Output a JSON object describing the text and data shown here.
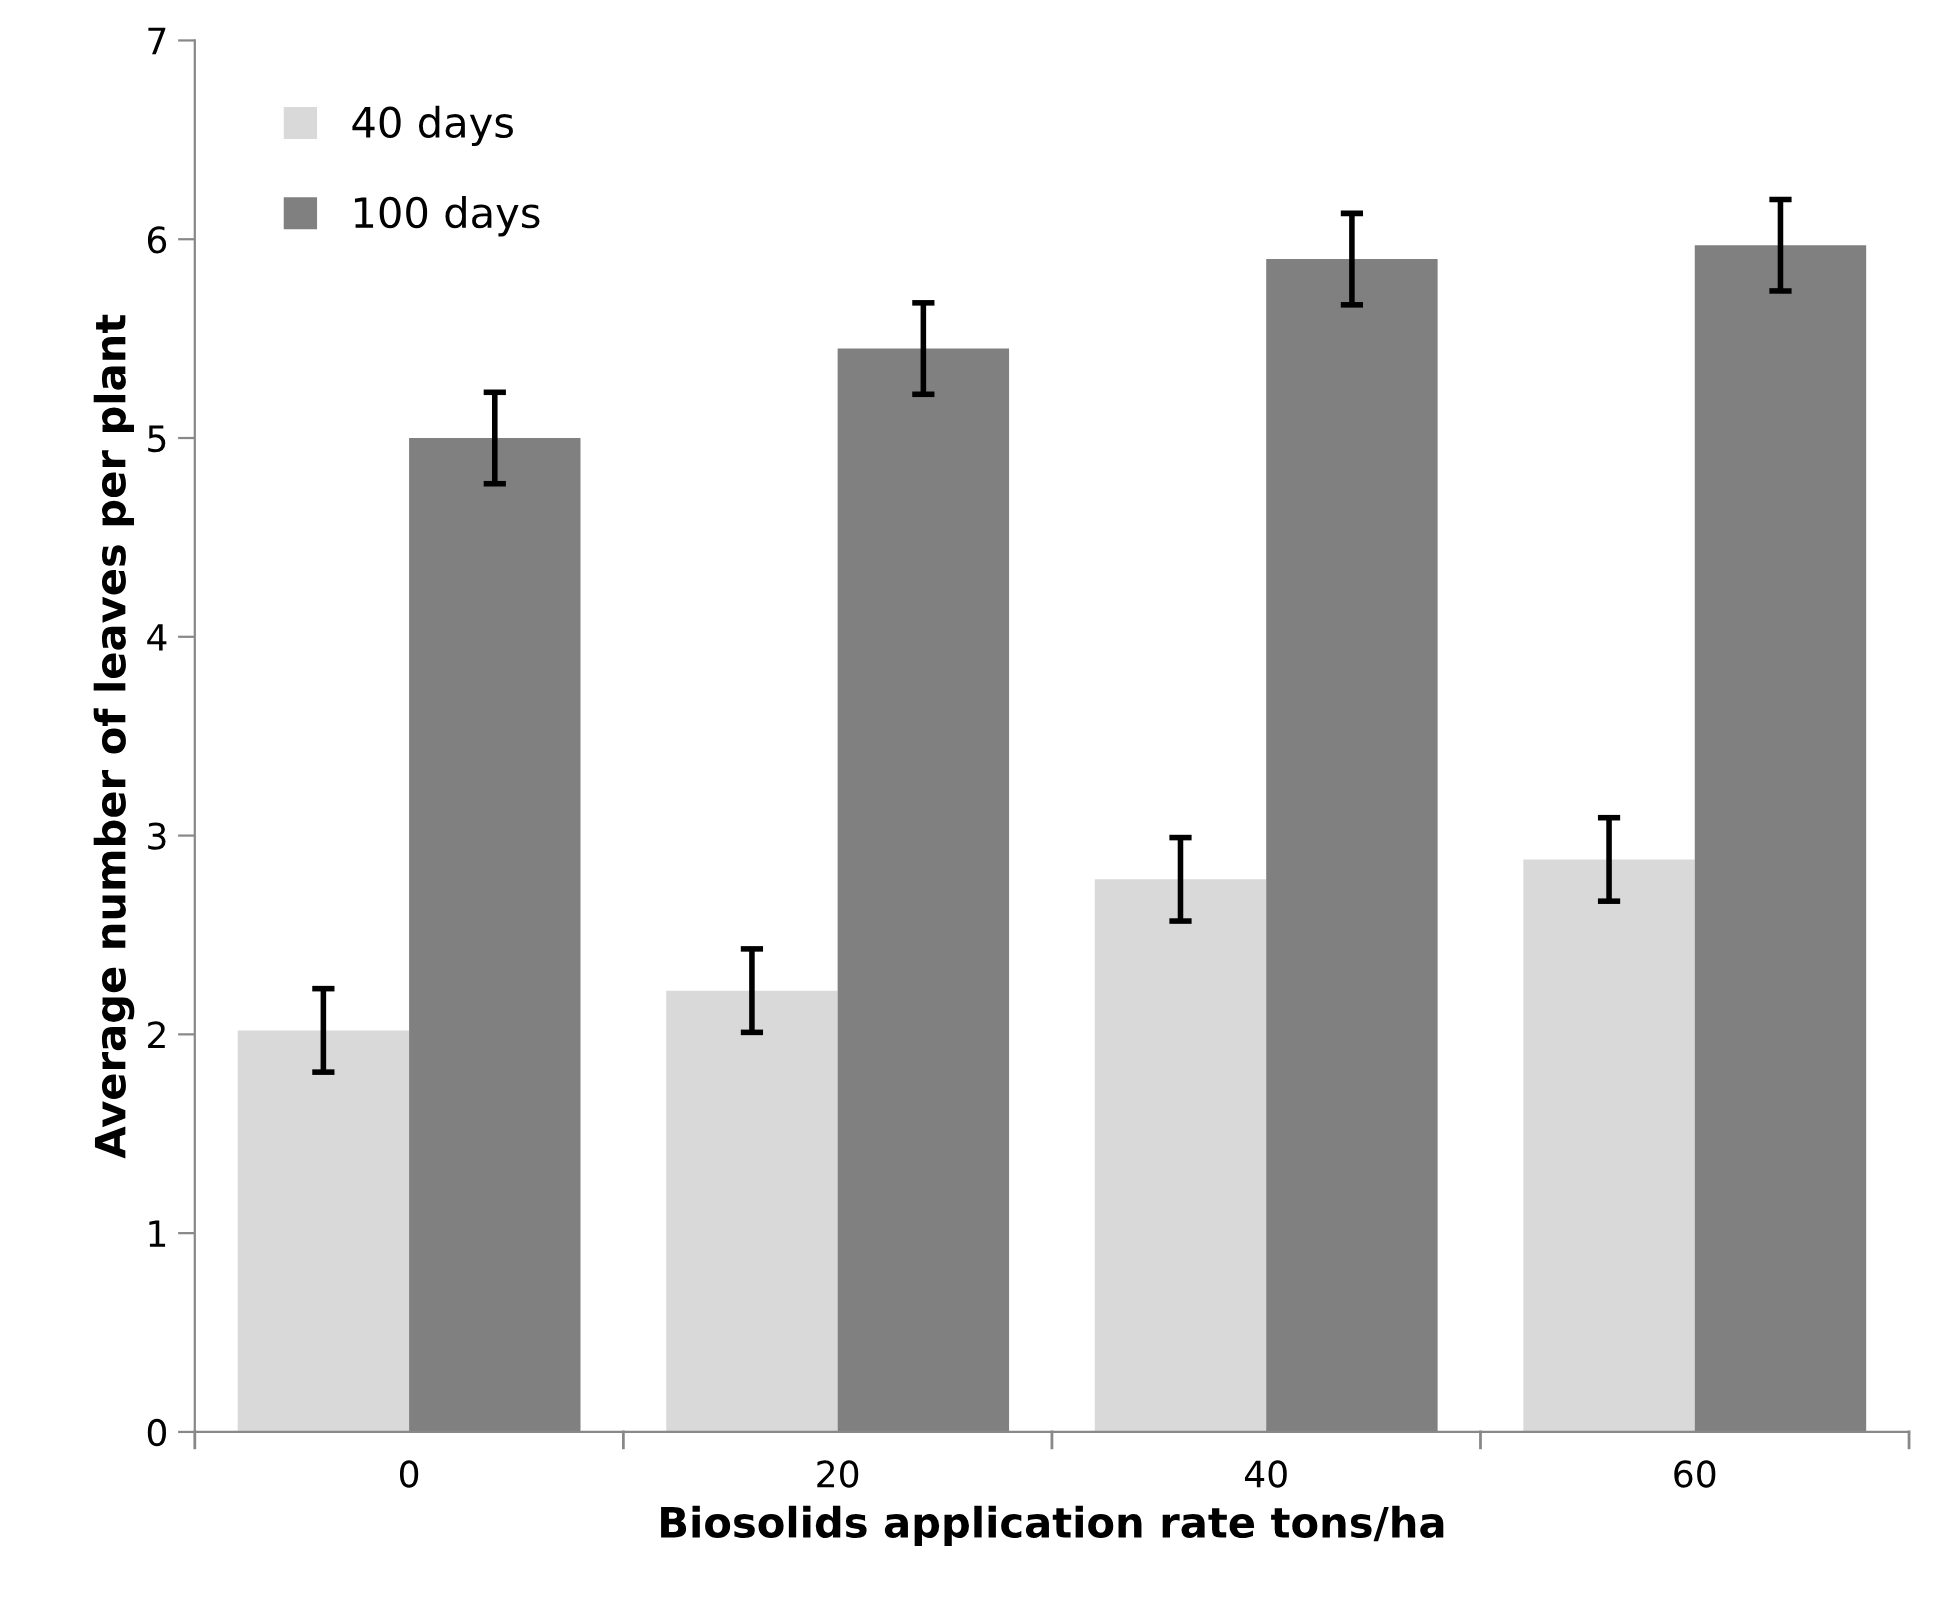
{
  "chart_data": {
    "type": "bar",
    "xlabel": "Biosolids application rate tons/ha",
    "ylabel": "Average number of leaves per plant",
    "categories": [
      "0",
      "20",
      "40",
      "60"
    ],
    "series": [
      {
        "name": "40 days",
        "color": "#d9d9d9",
        "values": [
          2.02,
          2.22,
          2.78,
          2.88
        ],
        "errors": [
          0.21,
          0.21,
          0.21,
          0.21
        ]
      },
      {
        "name": "100 days",
        "color": "#808080",
        "values": [
          5.0,
          5.45,
          5.9,
          5.97
        ],
        "errors": [
          0.23,
          0.23,
          0.23,
          0.23
        ]
      }
    ],
    "ylim": [
      0,
      7
    ],
    "yticks": [
      0,
      1,
      2,
      3,
      4,
      5,
      6,
      7
    ],
    "grid": false,
    "legend": "top left"
  }
}
